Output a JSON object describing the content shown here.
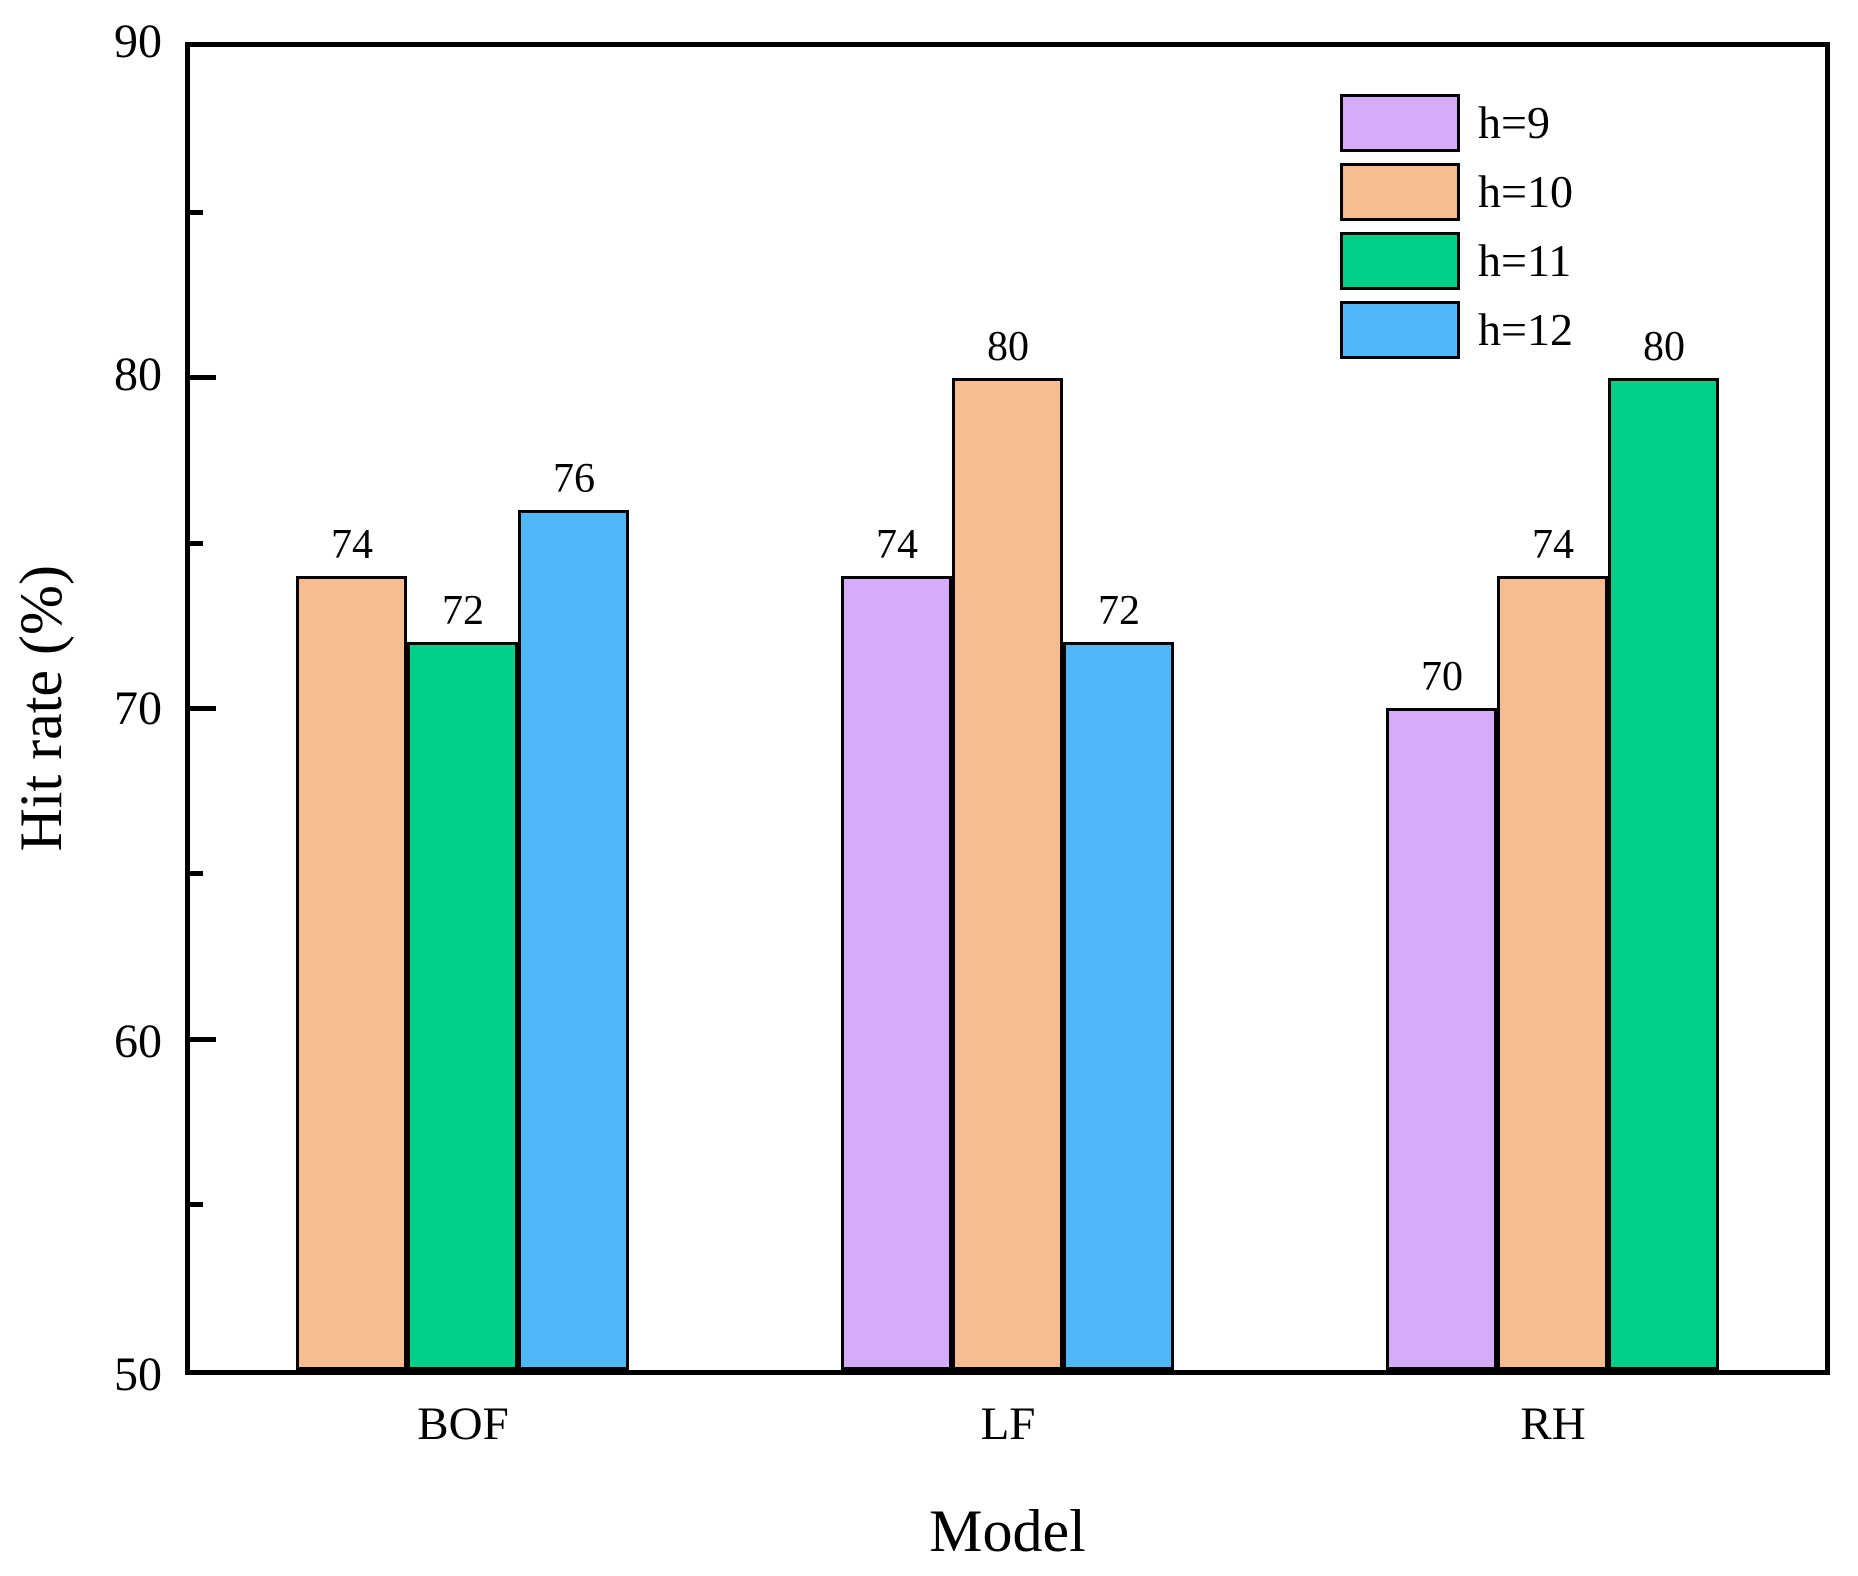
{
  "chart_data": {
    "type": "bar",
    "title": "",
    "xlabel": "Model",
    "ylabel": "Hit rate (%)",
    "ylim": [
      50,
      90
    ],
    "yticks_major": [
      50,
      60,
      70,
      80,
      90
    ],
    "yticks_minor": [
      55,
      65,
      75,
      85
    ],
    "grid": false,
    "legend_position": "top-right-inside",
    "categories": [
      "BOF",
      "LF",
      "RH"
    ],
    "series": [
      {
        "name": "h=9",
        "color": "#D4ACF8",
        "values": [
          null,
          74,
          70
        ]
      },
      {
        "name": "h=10",
        "color": "#F6BE90",
        "values": [
          74,
          80,
          74
        ]
      },
      {
        "name": "h=11",
        "color": "#00CE8B",
        "values": [
          72,
          null,
          80
        ]
      },
      {
        "name": "h=12",
        "color": "#4FB8F9",
        "values": [
          76,
          72,
          null
        ]
      }
    ],
    "bar_value_labels": true,
    "axis_color": "#000000",
    "bar_border_color": "#000000",
    "background_color": "#FFFFFF"
  }
}
